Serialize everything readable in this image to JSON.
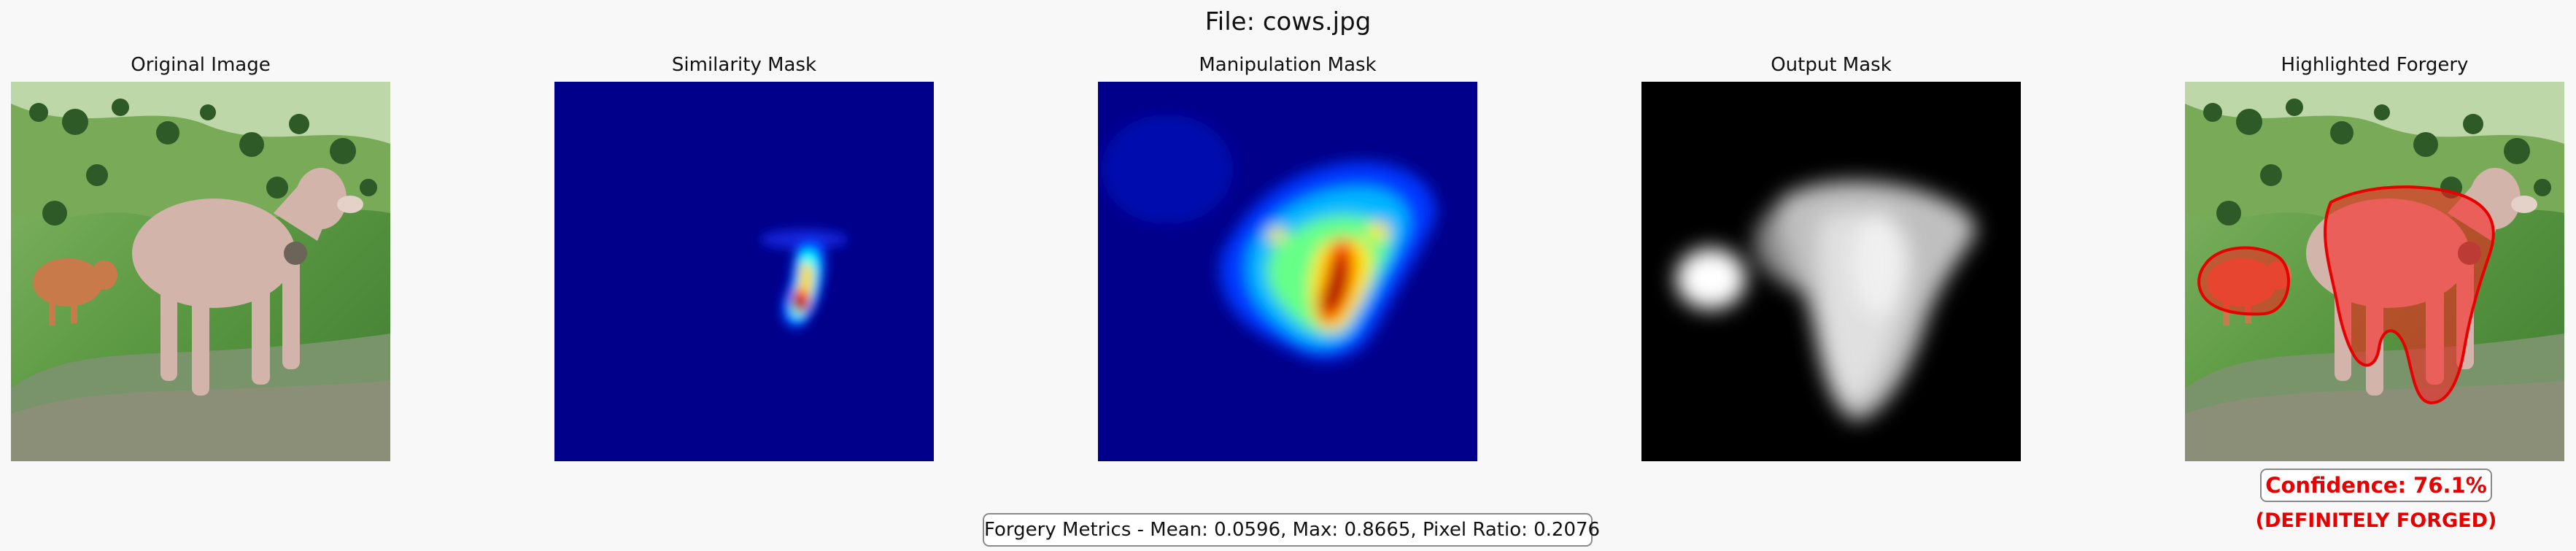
{
  "figure": {
    "title": "File: cows.jpg"
  },
  "panels": [
    {
      "title": "Original Image"
    },
    {
      "title": "Similarity Mask"
    },
    {
      "title": "Manipulation Mask"
    },
    {
      "title": "Output Mask"
    },
    {
      "title": "Highlighted Forgery"
    }
  ],
  "metrics": {
    "text": "Forgery Metrics - Mean: 0.0596, Max: 0.8665, Pixel Ratio: 0.2076",
    "mean": 0.0596,
    "max": 0.8665,
    "pixel_ratio": 0.2076
  },
  "result": {
    "confidence_text": "Confidence: 76.1%",
    "confidence": 76.1,
    "verdict": "(DEFINITELY FORGED)"
  },
  "colors": {
    "highlight": "#e60000",
    "mask_background": "#00008b",
    "grass": "#4f8f3a"
  }
}
